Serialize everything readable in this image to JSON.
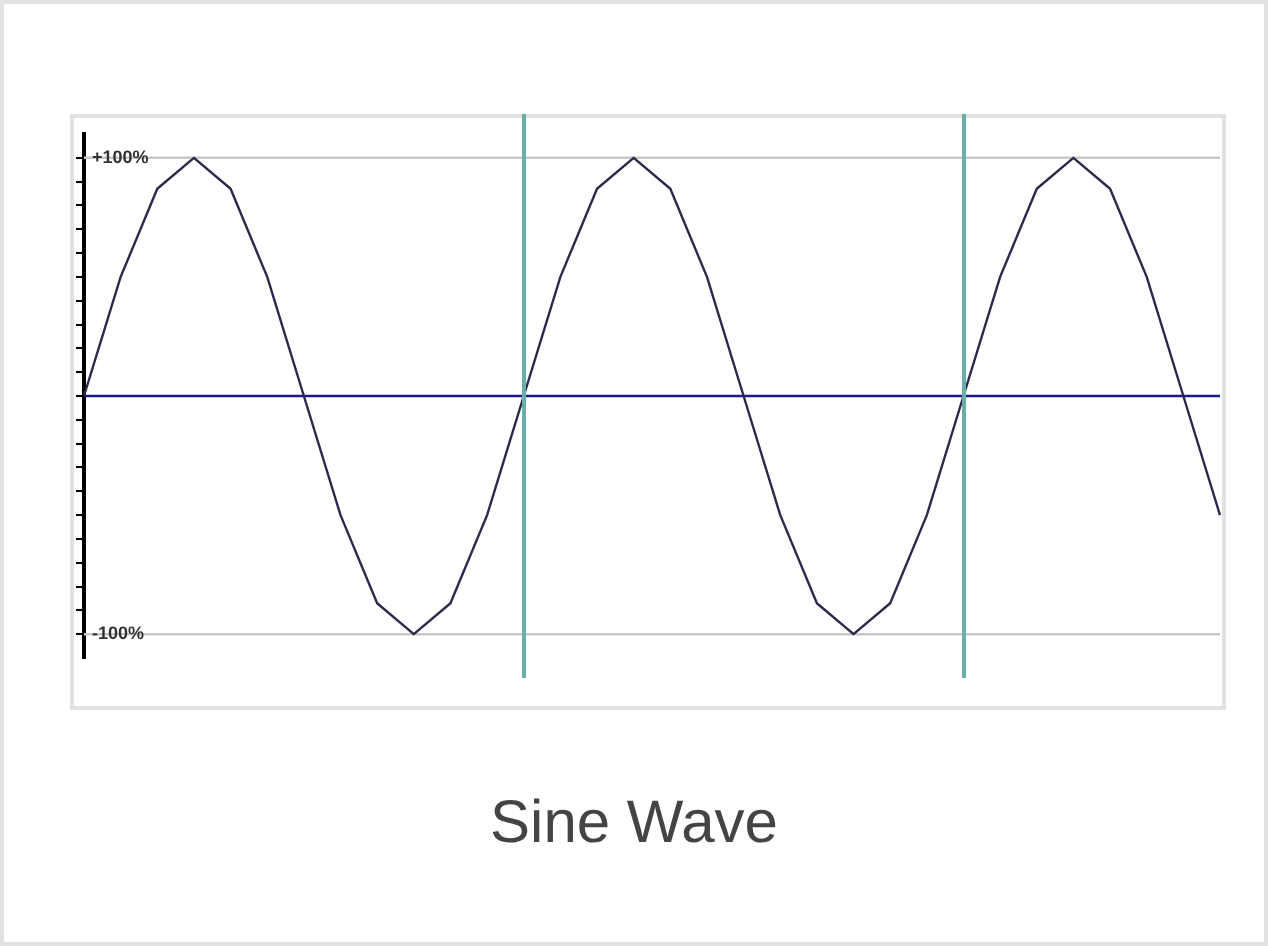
{
  "chart_data": {
    "type": "line",
    "title": "Sine Wave",
    "categories": [
      null,
      null,
      null,
      null,
      null,
      null,
      null,
      null,
      null,
      null,
      null,
      null,
      null,
      null,
      null,
      null,
      null,
      null,
      null,
      null,
      null,
      null,
      null,
      null,
      null,
      null,
      null,
      null,
      null,
      null,
      null,
      null
    ],
    "series": [
      {
        "color": "#2a2a4a",
        "values": [
          0,
          50,
          87,
          100,
          87,
          50,
          0,
          -50,
          -87,
          -100,
          -87,
          -50,
          0,
          50,
          87,
          100,
          87,
          50,
          0,
          -50,
          -87,
          -100,
          -87,
          -50,
          0,
          50,
          87,
          100,
          87,
          50,
          0,
          -50
        ]
      }
    ],
    "ylim": [
      -110,
      110
    ],
    "yticks": [
      {
        "value": -100,
        "label": "-100%"
      },
      {
        "value": -90,
        "label": null
      },
      {
        "value": -80,
        "label": null
      },
      {
        "value": -70,
        "label": null
      },
      {
        "value": -60,
        "label": null
      },
      {
        "value": -50,
        "label": null
      },
      {
        "value": -40,
        "label": null
      },
      {
        "value": -30,
        "label": null
      },
      {
        "value": -20,
        "label": null
      },
      {
        "value": -10,
        "label": null
      },
      {
        "value": 0,
        "label": null
      },
      {
        "value": 10,
        "label": null
      },
      {
        "value": 20,
        "label": null
      },
      {
        "value": 30,
        "label": null
      },
      {
        "value": 40,
        "label": null
      },
      {
        "value": 50,
        "label": null
      },
      {
        "value": 60,
        "label": null
      },
      {
        "value": 70,
        "label": null
      },
      {
        "value": 80,
        "label": null
      },
      {
        "value": 90,
        "label": null
      },
      {
        "value": 100,
        "label": "+100%"
      }
    ],
    "tick_labels": "y",
    "grid": false,
    "legend": false,
    "marker": "none",
    "line_style": "solid",
    "ref_lines": [
      {
        "axis": "y",
        "value": 100,
        "color": "#c8c8c8"
      },
      {
        "axis": "y",
        "value": -100,
        "color": "#c8c8c8"
      },
      {
        "axis": "y",
        "value": 0,
        "color": "#1a1a8c"
      }
    ]
  }
}
